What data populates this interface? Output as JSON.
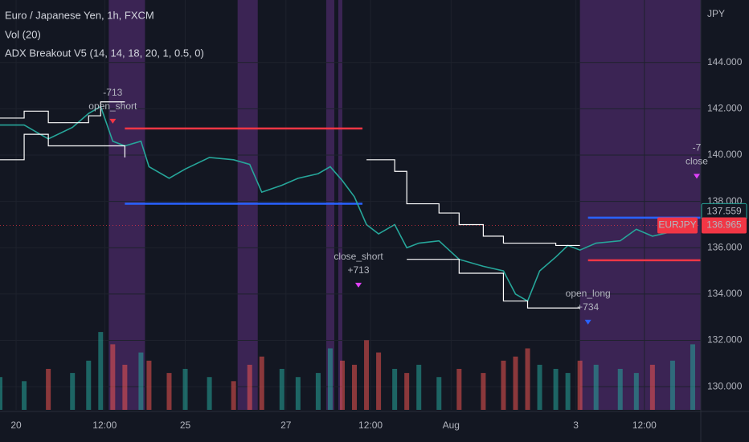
{
  "header": {
    "symbol": "Euro / Japanese Yen, 1h, FXCM",
    "volume_study": "Vol (20)",
    "strategy": "ADX Breakout V5 (14, 14, 18, 20, 1, 0.5, 0)"
  },
  "chart_data": {
    "type": "line",
    "y_unit": "JPY",
    "grid": true,
    "xlim": [
      0,
      174
    ],
    "ylim": [
      129,
      146.7
    ],
    "y2lim": [
      0,
      500
    ],
    "xticks": [
      {
        "value": 4,
        "label": "20"
      },
      {
        "value": 26,
        "label": "12:00"
      },
      {
        "value": 46,
        "label": "25"
      },
      {
        "value": 71,
        "label": "27"
      },
      {
        "value": 92,
        "label": "12:00"
      },
      {
        "value": 112,
        "label": "Aug"
      },
      {
        "value": 143,
        "label": "3"
      },
      {
        "value": 160,
        "label": "12:00"
      }
    ],
    "yticks": [
      {
        "value": 130,
        "label": "130.000"
      },
      {
        "value": 132,
        "label": "132.000"
      },
      {
        "value": 134,
        "label": "134.000"
      },
      {
        "value": 136,
        "label": "136.000"
      },
      {
        "value": 138,
        "label": "138.000"
      },
      {
        "value": 140,
        "label": "140.000"
      },
      {
        "value": 142,
        "label": "142.000"
      },
      {
        "value": 144,
        "label": "144.000"
      }
    ],
    "x": [
      0,
      6,
      12,
      18,
      22,
      25,
      28,
      31,
      35,
      37,
      42,
      46,
      52,
      58,
      62,
      65,
      70,
      74,
      79,
      82,
      85,
      88,
      91,
      94,
      98,
      101,
      104,
      109,
      114,
      120,
      125,
      128,
      131,
      134,
      138,
      141,
      144,
      148,
      154,
      158,
      162,
      167,
      172
    ],
    "series": [
      {
        "color": "#26a69a",
        "values": [
          141.3,
          141.3,
          140.7,
          141.2,
          141.8,
          142.1,
          140.6,
          140.4,
          140.6,
          139.5,
          139.0,
          139.4,
          139.9,
          139.8,
          139.6,
          138.4,
          138.7,
          139.0,
          139.2,
          139.5,
          138.9,
          138.2,
          137.0,
          136.6,
          137.0,
          136.0,
          136.2,
          136.3,
          135.5,
          135.2,
          135.0,
          134.0,
          133.7,
          135.0,
          135.6,
          136.1,
          135.9,
          136.2,
          136.3,
          136.8,
          136.5,
          136.7,
          136.9
        ]
      },
      {
        "color": "#ffffff",
        "step": true,
        "values": [
          141.6,
          141.9,
          141.4,
          141.4,
          141.7,
          142.3,
          142.3,
          142.3,
          null,
          null,
          null,
          null,
          null,
          null,
          null,
          null,
          null,
          null,
          null,
          null,
          null,
          null,
          139.8,
          139.8,
          139.3,
          137.9,
          137.9,
          137.5,
          137.0,
          136.5,
          136.2,
          136.2,
          136.2,
          136.2,
          136.1,
          136.1,
          136.1,
          null,
          null,
          null,
          null,
          null,
          null
        ]
      },
      {
        "color": "#ffffff",
        "step": true,
        "values": [
          139.8,
          140.9,
          140.4,
          140.4,
          140.4,
          140.4,
          140.4,
          139.9,
          null,
          null,
          null,
          null,
          null,
          null,
          null,
          null,
          null,
          null,
          null,
          null,
          null,
          null,
          null,
          null,
          null,
          135.5,
          135.5,
          135.5,
          134.9,
          134.9,
          133.7,
          133.7,
          133.4,
          133.4,
          133.4,
          133.4,
          133.4,
          null,
          null,
          null,
          null,
          null,
          null
        ]
      },
      {
        "type": "bar",
        "axis": "y2",
        "color": "#26a69a",
        "down_color": "#ef5350",
        "values": [
          40,
          35,
          50,
          45,
          60,
          95,
          80,
          55,
          70,
          60,
          45,
          50,
          40,
          35,
          55,
          65,
          50,
          40,
          45,
          75,
          60,
          55,
          85,
          70,
          50,
          45,
          55,
          40,
          50,
          45,
          60,
          65,
          75,
          55,
          50,
          45,
          60,
          55,
          50,
          45,
          55,
          60,
          80
        ]
      }
    ],
    "highlights": [
      [
        27,
        36
      ],
      [
        59,
        64
      ],
      [
        81,
        83
      ],
      [
        84,
        85
      ],
      [
        144,
        174
      ]
    ],
    "levels": [
      {
        "y": 141.15,
        "x": [
          31,
          90
        ],
        "color": "#f23645"
      },
      {
        "y": 137.9,
        "x": [
          31,
          90
        ],
        "color": "#2962ff"
      },
      {
        "y": 137.3,
        "x": [
          146,
          174
        ],
        "color": "#2962ff"
      },
      {
        "y": 135.46,
        "x": [
          146,
          174
        ],
        "color": "#f23645"
      }
    ],
    "annotations": [
      {
        "lines": [
          "-713",
          "open_short"
        ],
        "x": 28,
        "y": 142.68,
        "color": "#f23645"
      },
      {
        "lines": [
          "close_short",
          "+713"
        ],
        "x": 89,
        "y": 135.6,
        "color": "#e040fb"
      },
      {
        "lines": [
          "open_long",
          "+734"
        ],
        "x": 146,
        "y": 134.0,
        "color": "#2962ff"
      },
      {
        "lines": [
          "-7",
          "close"
        ],
        "x": 173,
        "y": 140.3,
        "color": "#e040fb"
      }
    ],
    "price_labels": [
      {
        "value": 137.559,
        "color": "#26a69a"
      },
      {
        "label": "EURJPY",
        "value": 136.965,
        "color": "#f23645"
      }
    ]
  }
}
